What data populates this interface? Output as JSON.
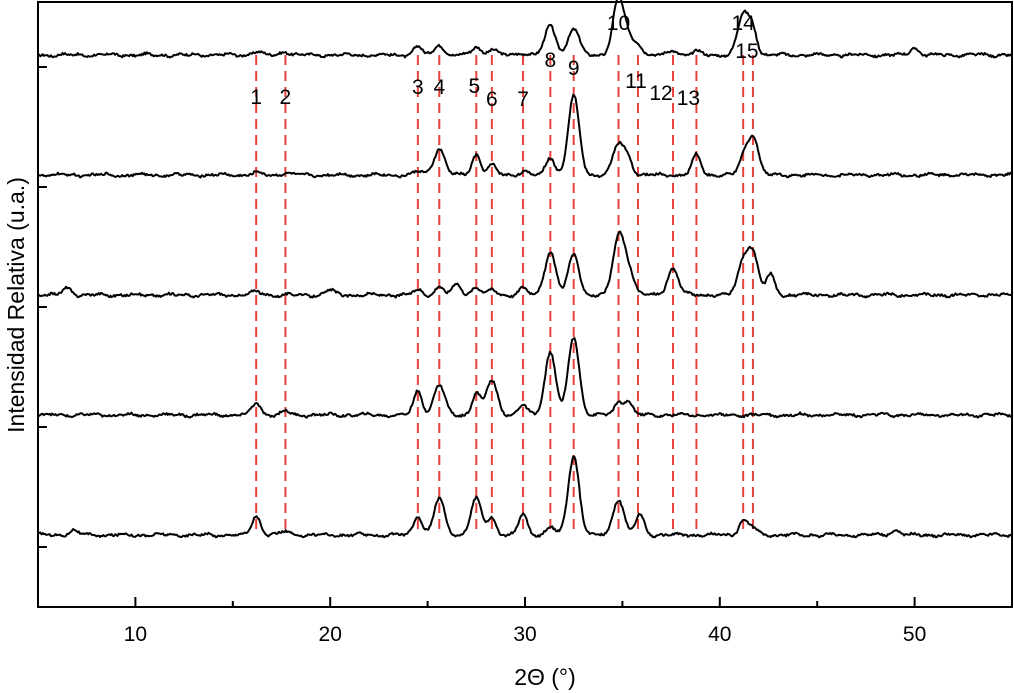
{
  "chart_data": {
    "type": "line",
    "title": "",
    "xlabel": "2Θ (°)",
    "ylabel": "Intensidad Relativa (u.a.)",
    "xlim": [
      5,
      55
    ],
    "ylim": [
      0,
      5
    ],
    "x_ticks": [
      10,
      20,
      30,
      40,
      50
    ],
    "x_tick_labels": [
      "10",
      "20",
      "30",
      "40",
      "50"
    ],
    "grid": false,
    "legend": "none",
    "colors": {
      "trace": "#000000",
      "reference_lines": "#e8403a"
    },
    "reference_peaks": [
      {
        "label": "1",
        "x": 16.2
      },
      {
        "label": "2",
        "x": 17.7
      },
      {
        "label": "3",
        "x": 24.5
      },
      {
        "label": "4",
        "x": 25.6
      },
      {
        "label": "5",
        "x": 27.5
      },
      {
        "label": "6",
        "x": 28.3
      },
      {
        "label": "7",
        "x": 29.9
      },
      {
        "label": "8",
        "x": 31.3
      },
      {
        "label": "9",
        "x": 32.5
      },
      {
        "label": "10",
        "x": 34.8
      },
      {
        "label": "11",
        "x": 35.8
      },
      {
        "label": "12",
        "x": 37.6
      },
      {
        "label": "13",
        "x": 38.8
      },
      {
        "label": "14",
        "x": 41.2
      },
      {
        "label": "15",
        "x": 41.7
      }
    ],
    "series": [
      {
        "baseline": 4.6,
        "peaks": [
          [
            16.2,
            0.03
          ],
          [
            17.7,
            0.03
          ],
          [
            24.5,
            0.07
          ],
          [
            25.6,
            0.09
          ],
          [
            27.5,
            0.07
          ],
          [
            28.3,
            0.05
          ],
          [
            29.9,
            0.02
          ],
          [
            31.3,
            0.24
          ],
          [
            32.5,
            0.22
          ],
          [
            34.8,
            0.47
          ],
          [
            35.3,
            0.12
          ],
          [
            35.8,
            0.1
          ],
          [
            37.6,
            0.04
          ],
          [
            38.8,
            0.03
          ],
          [
            41.2,
            0.34
          ],
          [
            41.7,
            0.2
          ],
          [
            50.0,
            0.06
          ]
        ]
      },
      {
        "baseline": 3.6,
        "peaks": [
          [
            16.2,
            0.02
          ],
          [
            17.7,
            0.02
          ],
          [
            24.5,
            0.03
          ],
          [
            25.6,
            0.22
          ],
          [
            27.5,
            0.17
          ],
          [
            28.3,
            0.08
          ],
          [
            29.9,
            0.03
          ],
          [
            31.3,
            0.15
          ],
          [
            32.5,
            0.66
          ],
          [
            34.8,
            0.26
          ],
          [
            35.3,
            0.12
          ],
          [
            38.8,
            0.17
          ],
          [
            41.2,
            0.12
          ],
          [
            41.7,
            0.33
          ]
        ]
      },
      {
        "baseline": 2.6,
        "peaks": [
          [
            6.5,
            0.06
          ],
          [
            16.2,
            0.03
          ],
          [
            20.0,
            0.04
          ],
          [
            24.5,
            0.04
          ],
          [
            25.6,
            0.07
          ],
          [
            26.5,
            0.09
          ],
          [
            27.5,
            0.07
          ],
          [
            28.3,
            0.04
          ],
          [
            29.9,
            0.06
          ],
          [
            31.3,
            0.36
          ],
          [
            32.5,
            0.33
          ],
          [
            34.8,
            0.47
          ],
          [
            35.3,
            0.21
          ],
          [
            37.6,
            0.22
          ],
          [
            41.2,
            0.26
          ],
          [
            41.7,
            0.33
          ],
          [
            42.6,
            0.17
          ]
        ]
      },
      {
        "baseline": 1.6,
        "peaks": [
          [
            16.2,
            0.1
          ],
          [
            17.7,
            0.03
          ],
          [
            24.5,
            0.2
          ],
          [
            25.6,
            0.25
          ],
          [
            27.5,
            0.18
          ],
          [
            28.3,
            0.29
          ],
          [
            29.9,
            0.08
          ],
          [
            31.3,
            0.52
          ],
          [
            32.5,
            0.65
          ],
          [
            34.8,
            0.1
          ],
          [
            35.3,
            0.11
          ]
        ]
      },
      {
        "baseline": 0.6,
        "peaks": [
          [
            6.8,
            0.04
          ],
          [
            16.2,
            0.16
          ],
          [
            17.7,
            0.03
          ],
          [
            24.5,
            0.16
          ],
          [
            25.6,
            0.3
          ],
          [
            27.5,
            0.3
          ],
          [
            28.3,
            0.14
          ],
          [
            29.9,
            0.17
          ],
          [
            31.3,
            0.07
          ],
          [
            32.5,
            0.66
          ],
          [
            34.8,
            0.3
          ],
          [
            35.9,
            0.17
          ],
          [
            41.2,
            0.12
          ],
          [
            41.7,
            0.06
          ],
          [
            49.0,
            0.04
          ]
        ]
      }
    ]
  }
}
